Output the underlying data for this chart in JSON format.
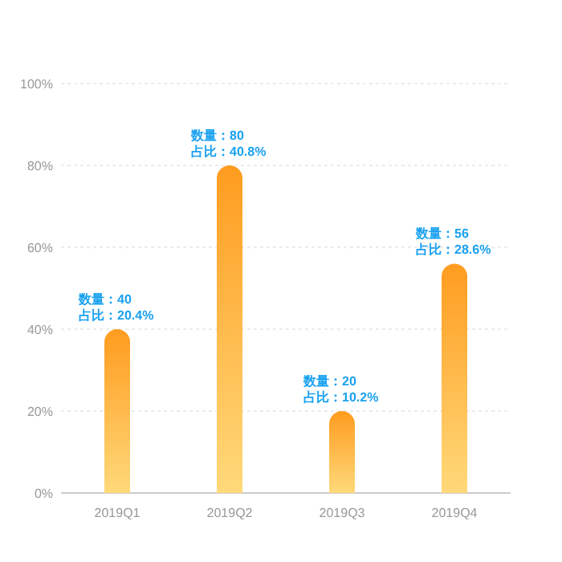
{
  "chart_data": {
    "type": "bar",
    "categories": [
      "2019Q1",
      "2019Q2",
      "2019Q3",
      "2019Q4"
    ],
    "values": [
      40,
      80,
      20,
      56
    ],
    "value_labels": [
      "数量：40\n占比：20.4%",
      "数量：80\n占比：40.8%",
      "数量：20\n占比：10.2%",
      "数量：56\n占比：28.6%"
    ],
    "color": "#ff9c1f",
    "ylim": [
      0,
      100
    ],
    "yticks": [
      {
        "value": 0,
        "label": "0%"
      },
      {
        "value": 20,
        "label": "20%"
      },
      {
        "value": 40,
        "label": "40%"
      },
      {
        "value": 60,
        "label": "60%"
      },
      {
        "value": 80,
        "label": "80%"
      },
      {
        "value": 100,
        "label": "100%"
      }
    ],
    "grid": "y"
  }
}
